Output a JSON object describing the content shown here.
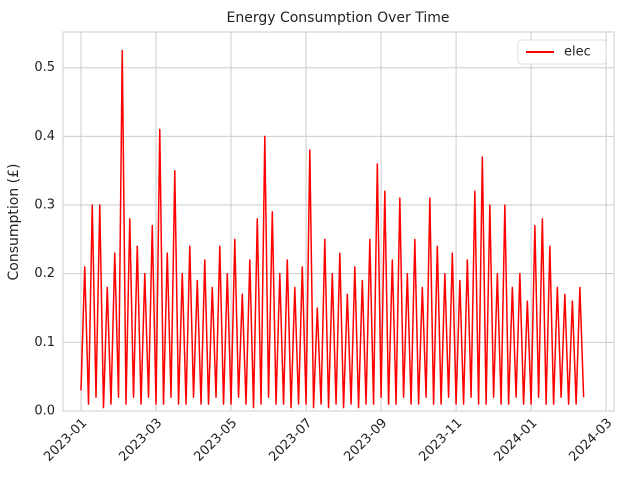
{
  "chart_data": {
    "type": "line",
    "title": "Energy Consumption Over Time",
    "y_label": "Consumption (£)",
    "x": [
      0,
      0.1,
      0.2,
      0.3,
      0.4,
      0.5,
      0.6,
      0.7,
      0.8,
      0.9,
      1,
      1.1,
      1.2,
      1.3,
      1.4,
      1.5,
      1.6,
      1.7,
      1.8,
      1.9,
      2,
      2.1,
      2.2,
      2.3,
      2.4,
      2.5,
      2.6,
      2.7,
      2.8,
      2.9,
      3,
      3.1,
      3.2,
      3.3,
      3.4,
      3.5,
      3.6,
      3.7,
      3.8,
      3.9,
      4,
      4.1,
      4.2,
      4.3,
      4.4,
      4.5,
      4.6,
      4.7,
      4.8,
      4.9,
      5,
      5.1,
      5.2,
      5.3,
      5.4,
      5.5,
      5.6,
      5.7,
      5.8,
      5.9,
      6,
      6.1,
      6.2,
      6.3,
      6.4,
      6.5,
      6.6,
      6.7,
      6.8,
      6.9,
      7,
      7.1,
      7.2,
      7.3,
      7.4,
      7.5,
      7.6,
      7.7,
      7.8,
      7.9,
      8,
      8.1,
      8.2,
      8.3,
      8.4,
      8.5,
      8.6,
      8.7,
      8.8,
      8.9,
      9,
      9.1,
      9.2,
      9.3,
      9.4,
      9.5,
      9.6,
      9.7,
      9.8,
      9.9,
      10,
      10.1,
      10.2,
      10.3,
      10.4,
      10.5,
      10.6,
      10.7,
      10.8,
      10.9,
      11,
      11.1,
      11.2,
      11.3,
      11.4,
      11.5,
      11.6,
      11.7,
      11.8,
      11.9,
      12,
      12.1,
      12.2,
      12.3,
      12.4,
      12.5,
      12.6,
      12.7,
      12.8,
      12.9,
      13,
      13.1,
      13.2,
      13.3,
      13.4
    ],
    "series": [
      {
        "name": "elec",
        "color": "#ff0000",
        "values": [
          0.03,
          0.21,
          0.01,
          0.3,
          0.02,
          0.3,
          0.005,
          0.18,
          0.01,
          0.23,
          0.02,
          0.525,
          0.01,
          0.28,
          0.02,
          0.24,
          0.01,
          0.2,
          0.02,
          0.27,
          0.01,
          0.41,
          0.01,
          0.23,
          0.02,
          0.35,
          0.01,
          0.2,
          0.01,
          0.24,
          0.02,
          0.19,
          0.01,
          0.22,
          0.01,
          0.18,
          0.02,
          0.24,
          0.01,
          0.2,
          0.01,
          0.25,
          0.02,
          0.17,
          0.01,
          0.22,
          0.005,
          0.28,
          0.01,
          0.4,
          0.02,
          0.29,
          0.01,
          0.2,
          0.01,
          0.22,
          0.005,
          0.18,
          0.01,
          0.21,
          0.01,
          0.38,
          0.005,
          0.15,
          0.01,
          0.25,
          0.005,
          0.2,
          0.01,
          0.23,
          0.005,
          0.17,
          0.01,
          0.21,
          0.005,
          0.19,
          0.01,
          0.25,
          0.01,
          0.36,
          0.02,
          0.32,
          0.01,
          0.22,
          0.01,
          0.31,
          0.02,
          0.2,
          0.01,
          0.25,
          0.01,
          0.18,
          0.02,
          0.31,
          0.01,
          0.24,
          0.01,
          0.2,
          0.02,
          0.23,
          0.01,
          0.19,
          0.01,
          0.22,
          0.02,
          0.32,
          0.01,
          0.37,
          0.01,
          0.3,
          0.02,
          0.2,
          0.01,
          0.3,
          0.01,
          0.18,
          0.02,
          0.2,
          0.01,
          0.16,
          0.01,
          0.27,
          0.02,
          0.28,
          0.01,
          0.24,
          0.01,
          0.18,
          0.02,
          0.17,
          0.01,
          0.16,
          0.01,
          0.18,
          0.02
        ]
      }
    ],
    "xlim": [
      -0.48,
      14.21
    ],
    "xticks": [
      {
        "value": 0,
        "label": "2023-01"
      },
      {
        "value": 2,
        "label": "2023-03"
      },
      {
        "value": 4,
        "label": "2023-05"
      },
      {
        "value": 6,
        "label": "2023-07"
      },
      {
        "value": 8,
        "label": "2023-09"
      },
      {
        "value": 10,
        "label": "2023-11"
      },
      {
        "value": 12,
        "label": "2024-01"
      },
      {
        "value": 14,
        "label": "2024-03"
      }
    ],
    "ylim": [
      0,
      0.552
    ],
    "yticks": [
      {
        "value": 0,
        "label": "0.0"
      },
      0.1,
      0.2,
      0.3,
      0.4,
      0.5
    ],
    "grid": true,
    "legend": "upper right"
  }
}
